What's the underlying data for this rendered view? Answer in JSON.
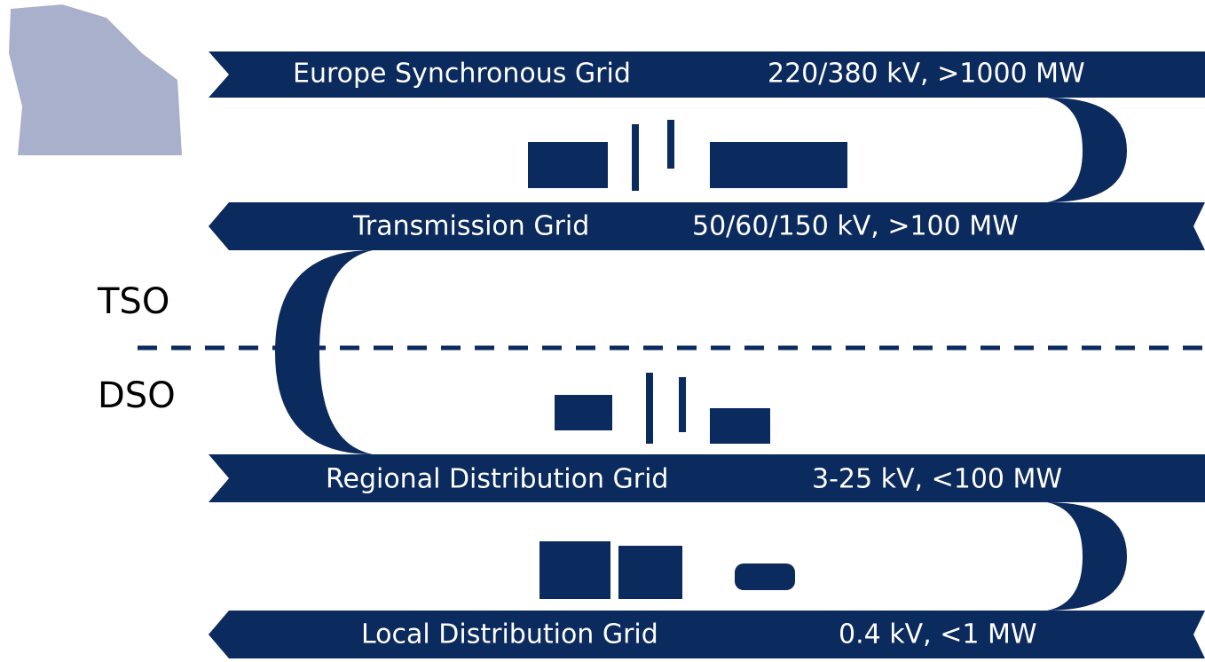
{
  "bands": [
    {
      "name": "Europe Synchronous Grid",
      "spec": "220/380 kV, >1000 MW"
    },
    {
      "name": "Transmission Grid",
      "spec": "50/60/150 kV, >100 MW"
    },
    {
      "name": "Regional Distribution Grid",
      "spec": "3-25 kV, <100 MW"
    },
    {
      "name": "Local Distribution Grid",
      "spec": "0.4 kV, <1 MW"
    }
  ],
  "operators": {
    "upper": "TSO",
    "lower": "DSO"
  }
}
